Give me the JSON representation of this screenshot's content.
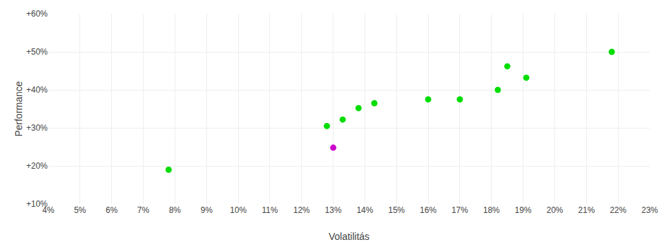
{
  "chart_data": {
    "type": "scatter",
    "xlabel": "Volatilitás",
    "ylabel": "Performance",
    "marker": "circle",
    "grid": true,
    "series": [
      {
        "color": "#00dd00",
        "x": [
          0.078,
          0.128,
          0.133,
          0.138,
          0.143,
          0.16,
          0.17,
          0.182,
          0.185,
          0.191,
          0.218
        ],
        "values": [
          0.19,
          0.305,
          0.322,
          0.352,
          0.365,
          0.375,
          0.375,
          0.4,
          0.462,
          0.432,
          0.5
        ]
      },
      {
        "color": "#cc00cc",
        "x": [
          0.13
        ],
        "values": [
          0.248
        ]
      }
    ],
    "xlim": [
      0.04,
      0.23
    ],
    "ylim": [
      0.1,
      0.6
    ],
    "xticks": [
      {
        "value": 0.04,
        "label": "4%"
      },
      {
        "value": 0.05,
        "label": "5%"
      },
      {
        "value": 0.06,
        "label": "6%"
      },
      {
        "value": 0.07,
        "label": "7%"
      },
      {
        "value": 0.08,
        "label": "8%"
      },
      {
        "value": 0.09,
        "label": "9%"
      },
      {
        "value": 0.1,
        "label": "10%"
      },
      {
        "value": 0.11,
        "label": "11%"
      },
      {
        "value": 0.12,
        "label": "12%"
      },
      {
        "value": 0.13,
        "label": "13%"
      },
      {
        "value": 0.14,
        "label": "14%"
      },
      {
        "value": 0.15,
        "label": "15%"
      },
      {
        "value": 0.16,
        "label": "16%"
      },
      {
        "value": 0.17,
        "label": "17%"
      },
      {
        "value": 0.18,
        "label": "18%"
      },
      {
        "value": 0.19,
        "label": "19%"
      },
      {
        "value": 0.2,
        "label": "20%"
      },
      {
        "value": 0.21,
        "label": "21%"
      },
      {
        "value": 0.22,
        "label": "22%"
      },
      {
        "value": 0.23,
        "label": "23%"
      }
    ],
    "yticks": [
      {
        "value": 0.1,
        "label": "+10%"
      },
      {
        "value": 0.2,
        "label": "+20%"
      },
      {
        "value": 0.3,
        "label": "+30%"
      },
      {
        "value": 0.4,
        "label": "+40%"
      },
      {
        "value": 0.5,
        "label": "+50%"
      },
      {
        "value": 0.6,
        "label": "+60%"
      }
    ]
  }
}
